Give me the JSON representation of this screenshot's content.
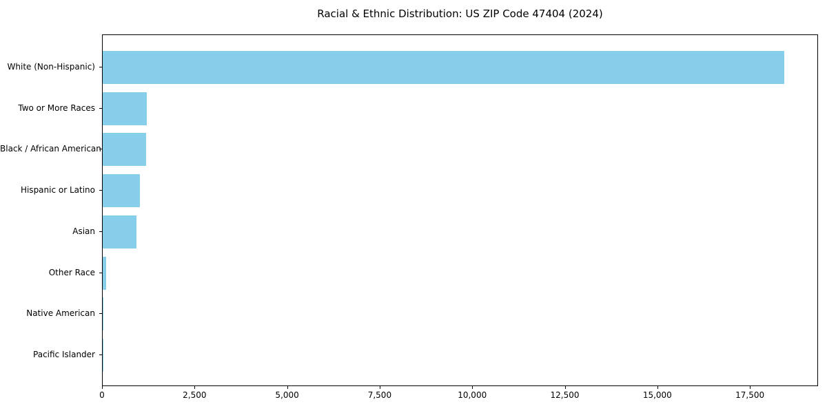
{
  "title": "Racial & Ethnic Distribution: US ZIP Code 47404 (2024)",
  "chart_data": {
    "type": "bar",
    "orientation": "horizontal",
    "title": "Racial & Ethnic Distribution: US ZIP Code 47404 (2024)",
    "categories": [
      "White (Non-Hispanic)",
      "Two or More Races",
      "Black / African American",
      "Hispanic or Latino",
      "Asian",
      "Other Race",
      "Native American",
      "Pacific Islander"
    ],
    "values": [
      18400,
      1200,
      1180,
      1000,
      910,
      90,
      15,
      5
    ],
    "xlabel": "",
    "ylabel": "",
    "xlim": [
      0,
      19340
    ],
    "x_ticks": [
      0,
      2500,
      5000,
      7500,
      10000,
      12500,
      15000,
      17500
    ],
    "x_tick_labels": [
      "0",
      "2,500",
      "5,000",
      "7,500",
      "10,000",
      "12,500",
      "15,000",
      "17,500"
    ],
    "bar_color": "#87CEEB",
    "axis_color": "#000000",
    "background_color": "#ffffff",
    "grid": false,
    "legend": "none"
  }
}
